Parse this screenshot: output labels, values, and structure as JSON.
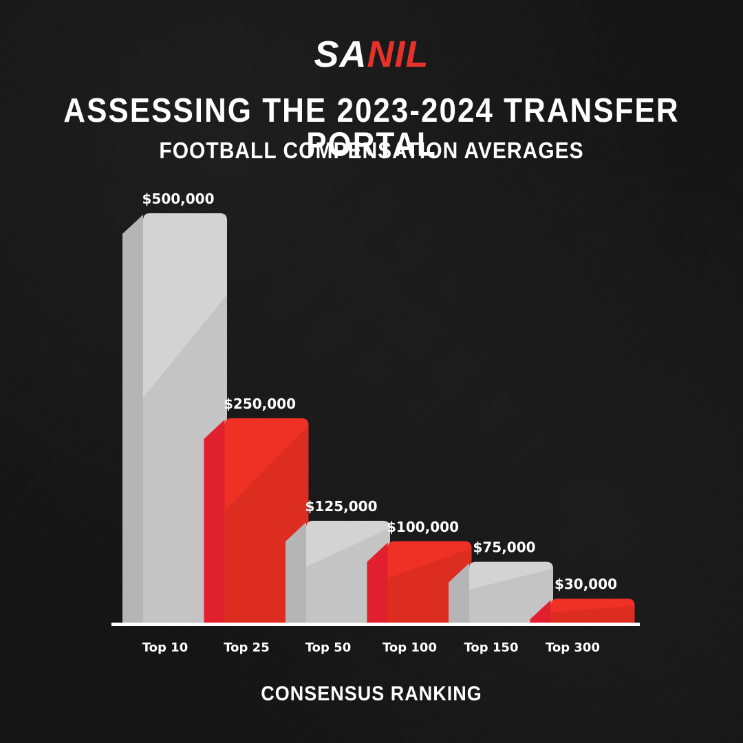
{
  "logo": {
    "part1": "SA",
    "part2": "NIL",
    "part2_color": "#e6322b"
  },
  "header": {
    "title": "ASSESSING THE 2023-2024 TRANSFER PORTAL",
    "subtitle": "FOOTBALL COMPENSATION AVERAGES"
  },
  "chart_data": {
    "type": "bar",
    "title": "ASSESSING THE 2023-2024 TRANSFER PORTAL",
    "subtitle": "FOOTBALL COMPENSATION AVERAGES",
    "xlabel": "CONSENSUS RANKING",
    "ylabel": "",
    "categories": [
      "Top 10",
      "Top 25",
      "Top 50",
      "Top 100",
      "Top 150",
      "Top 300"
    ],
    "values": [
      500000,
      250000,
      125000,
      100000,
      75000,
      30000
    ],
    "value_labels": [
      "$500,000",
      "$250,000",
      "$125,000",
      "$100,000",
      "$75,000",
      "$30,000"
    ],
    "ylim": [
      0,
      500000
    ],
    "grid": false,
    "legend": "none",
    "bar_colors": [
      "#d3d3d3",
      "#ee3124",
      "#d3d3d3",
      "#ee3124",
      "#d3d3d3",
      "#ee3124"
    ],
    "bar_side_colors": [
      "#b5b5b5",
      "#e01f2f",
      "#b5b5b5",
      "#e01f2f",
      "#b5b5b5",
      "#e01f2f"
    ],
    "baseline_color": "#ffffff"
  }
}
